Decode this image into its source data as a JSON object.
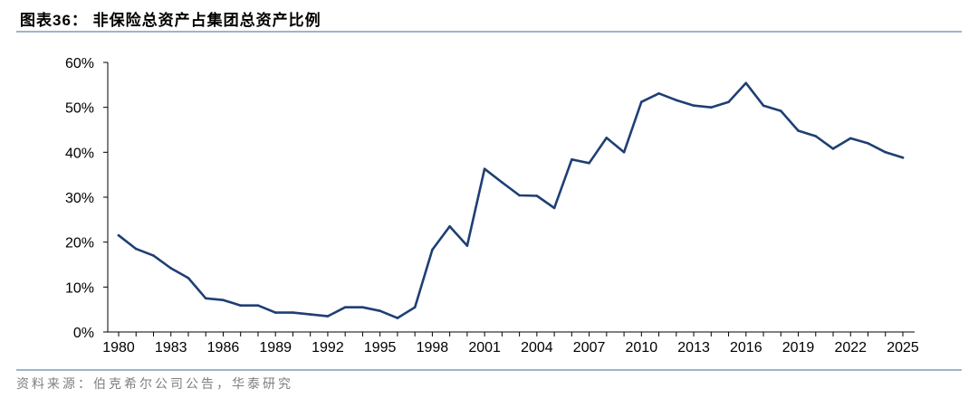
{
  "header": {
    "title": "图表36：  非保险总资产占集团总资产比例"
  },
  "footer": {
    "source": "资料来源：伯克希尔公司公告，华泰研究"
  },
  "chart_data": {
    "type": "line",
    "title": "",
    "xlabel": "",
    "ylabel": "",
    "x": [
      1980,
      1981,
      1982,
      1983,
      1984,
      1985,
      1986,
      1987,
      1988,
      1989,
      1990,
      1991,
      1992,
      1993,
      1994,
      1995,
      1996,
      1997,
      1998,
      1999,
      2000,
      2001,
      2002,
      2003,
      2004,
      2005,
      2006,
      2007,
      2008,
      2009,
      2010,
      2011,
      2012,
      2013,
      2014,
      2015,
      2016,
      2017,
      2018,
      2019,
      2020,
      2021,
      2022,
      2023,
      2024,
      2025
    ],
    "series": [
      {
        "values": [
          21.5,
          18.5,
          17,
          14.2,
          12,
          7.5,
          7.1,
          5.9,
          5.9,
          4.3,
          4.3,
          3.9,
          3.5,
          5.5,
          5.5,
          4.7,
          3.1,
          5.5,
          18.3,
          23.5,
          19.2,
          36.3,
          33.3,
          30.4,
          30.3,
          27.6,
          38.4,
          37.6,
          43.2,
          40,
          51.2,
          53.1,
          51.6,
          50.4,
          50,
          51.2,
          55.4,
          50.4,
          49.2,
          44.8,
          43.6,
          40.8,
          43.1,
          42,
          40,
          38.8
        ]
      }
    ],
    "y_ticks": [
      "0%",
      "10%",
      "20%",
      "30%",
      "40%",
      "50%",
      "60%"
    ],
    "x_ticks": [
      "1980",
      "1983",
      "1986",
      "1989",
      "1992",
      "1995",
      "1998",
      "2001",
      "2004",
      "2007",
      "2010",
      "2013",
      "2016",
      "2019",
      "2022",
      "2025"
    ],
    "ylim": [
      0,
      60
    ],
    "xlim": [
      1980,
      2025
    ],
    "grid": false,
    "legend": "none",
    "line_color": "#1f3f73"
  }
}
